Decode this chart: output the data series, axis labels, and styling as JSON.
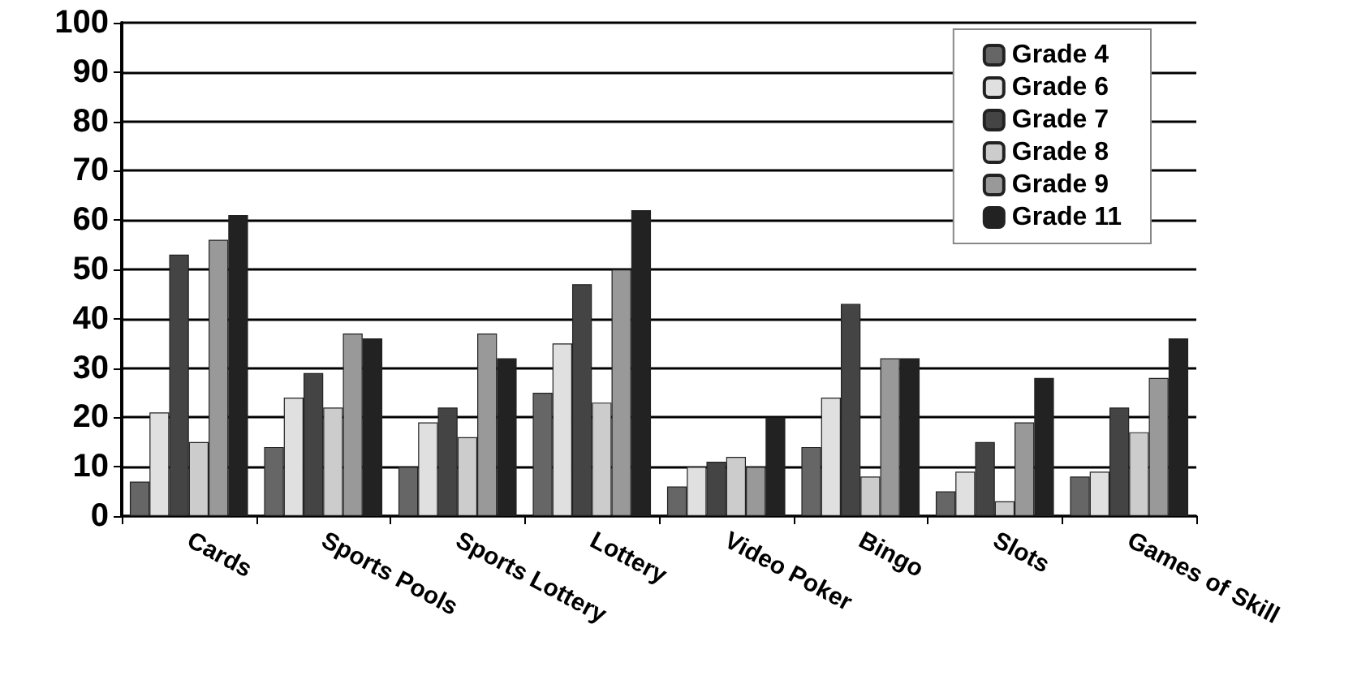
{
  "chart_data": {
    "type": "bar",
    "categories": [
      "Cards",
      "Sports Pools",
      "Sports Lottery",
      "Lottery",
      "Video Poker",
      "Bingo",
      "Slots",
      "Games of Skill"
    ],
    "series": [
      {
        "name": "Grade 4",
        "color": "#666666",
        "values": [
          7,
          14,
          10,
          25,
          6,
          14,
          5,
          8
        ]
      },
      {
        "name": "Grade 6",
        "color": "#e0e0e0",
        "values": [
          21,
          24,
          19,
          35,
          10,
          24,
          9,
          9
        ]
      },
      {
        "name": "Grade 7",
        "color": "#444444",
        "values": [
          53,
          29,
          22,
          47,
          11,
          43,
          15,
          22
        ]
      },
      {
        "name": "Grade 8",
        "color": "#cccccc",
        "values": [
          15,
          22,
          16,
          23,
          12,
          8,
          3,
          17
        ]
      },
      {
        "name": "Grade 9",
        "color": "#999999",
        "values": [
          56,
          37,
          37,
          50,
          10,
          32,
          19,
          28
        ]
      },
      {
        "name": "Grade 11",
        "color": "#222222",
        "values": [
          61,
          36,
          32,
          62,
          20,
          32,
          28,
          36
        ]
      }
    ],
    "ylim": [
      0,
      100
    ],
    "yticks": [
      0,
      10,
      20,
      30,
      40,
      50,
      60,
      70,
      80,
      90,
      100
    ],
    "grid": "y",
    "legend": "top right"
  }
}
